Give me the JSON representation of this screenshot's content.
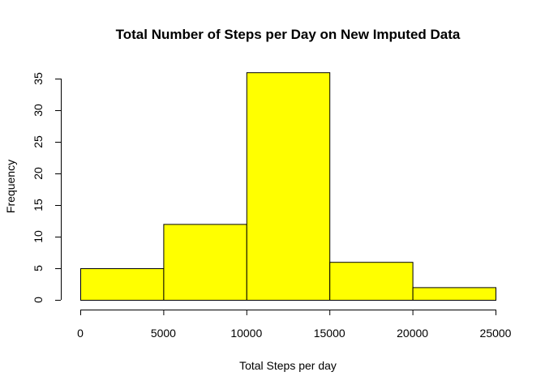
{
  "chart_data": {
    "type": "bar",
    "title": "Total Number of Steps per Day on New Imputed Data",
    "xlabel": "Total Steps per day",
    "ylabel": "Frequency",
    "bins": [
      {
        "start": 0,
        "end": 5000,
        "count": 5
      },
      {
        "start": 5000,
        "end": 10000,
        "count": 12
      },
      {
        "start": 10000,
        "end": 15000,
        "count": 36
      },
      {
        "start": 15000,
        "end": 20000,
        "count": 6
      },
      {
        "start": 20000,
        "end": 25000,
        "count": 2
      }
    ],
    "xlim": [
      0,
      25000
    ],
    "ylim": [
      0,
      35
    ],
    "xticks": [
      0,
      5000,
      10000,
      15000,
      20000,
      25000
    ],
    "yticks": [
      0,
      5,
      10,
      15,
      20,
      25,
      30,
      35
    ],
    "bar_color": "#ffff00",
    "grid": false
  }
}
